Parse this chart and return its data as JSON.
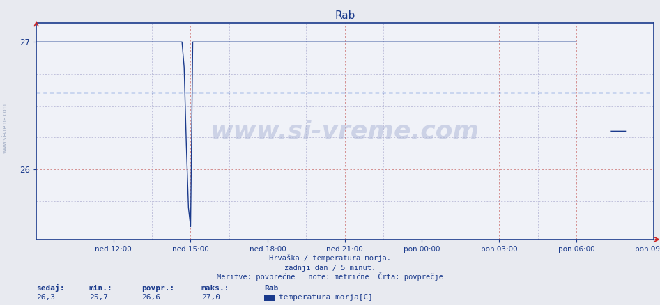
{
  "title": "Rab",
  "title_color": "#1a3a8c",
  "background_color": "#e8eaf0",
  "plot_bg_color": "#f0f2f8",
  "ylim": [
    25.45,
    27.15
  ],
  "yticks": [
    26,
    27
  ],
  "x_tick_labels": [
    "ned 12:00",
    "ned 15:00",
    "ned 18:00",
    "ned 21:00",
    "pon 00:00",
    "pon 03:00",
    "pon 06:00",
    "pon 09:00"
  ],
  "line_color": "#1a3a8c",
  "avg_line_color": "#3366cc",
  "avg_value": 26.6,
  "footer_line1": "Hrvaška / temperatura morja.",
  "footer_line2": "zadnji dan / 5 minut.",
  "footer_line3": "Meritve: povprečne  Enote: metrične  Črta: povprečje",
  "legend_station": "Rab",
  "legend_series": "temperatura morja[C]",
  "stats_labels": [
    "sedaj:",
    "min.:",
    "povpr.:",
    "maks.:"
  ],
  "stats_values": [
    "26,3",
    "25,7",
    "26,6",
    "27,0"
  ],
  "red_grid_color": "#d08080",
  "blue_minor_color": "#9090c0",
  "n_points": 288,
  "watermark": "www.si-vreme.com",
  "arrow_color": "#cc2222",
  "left_watermark": "www.si-vreme.com"
}
